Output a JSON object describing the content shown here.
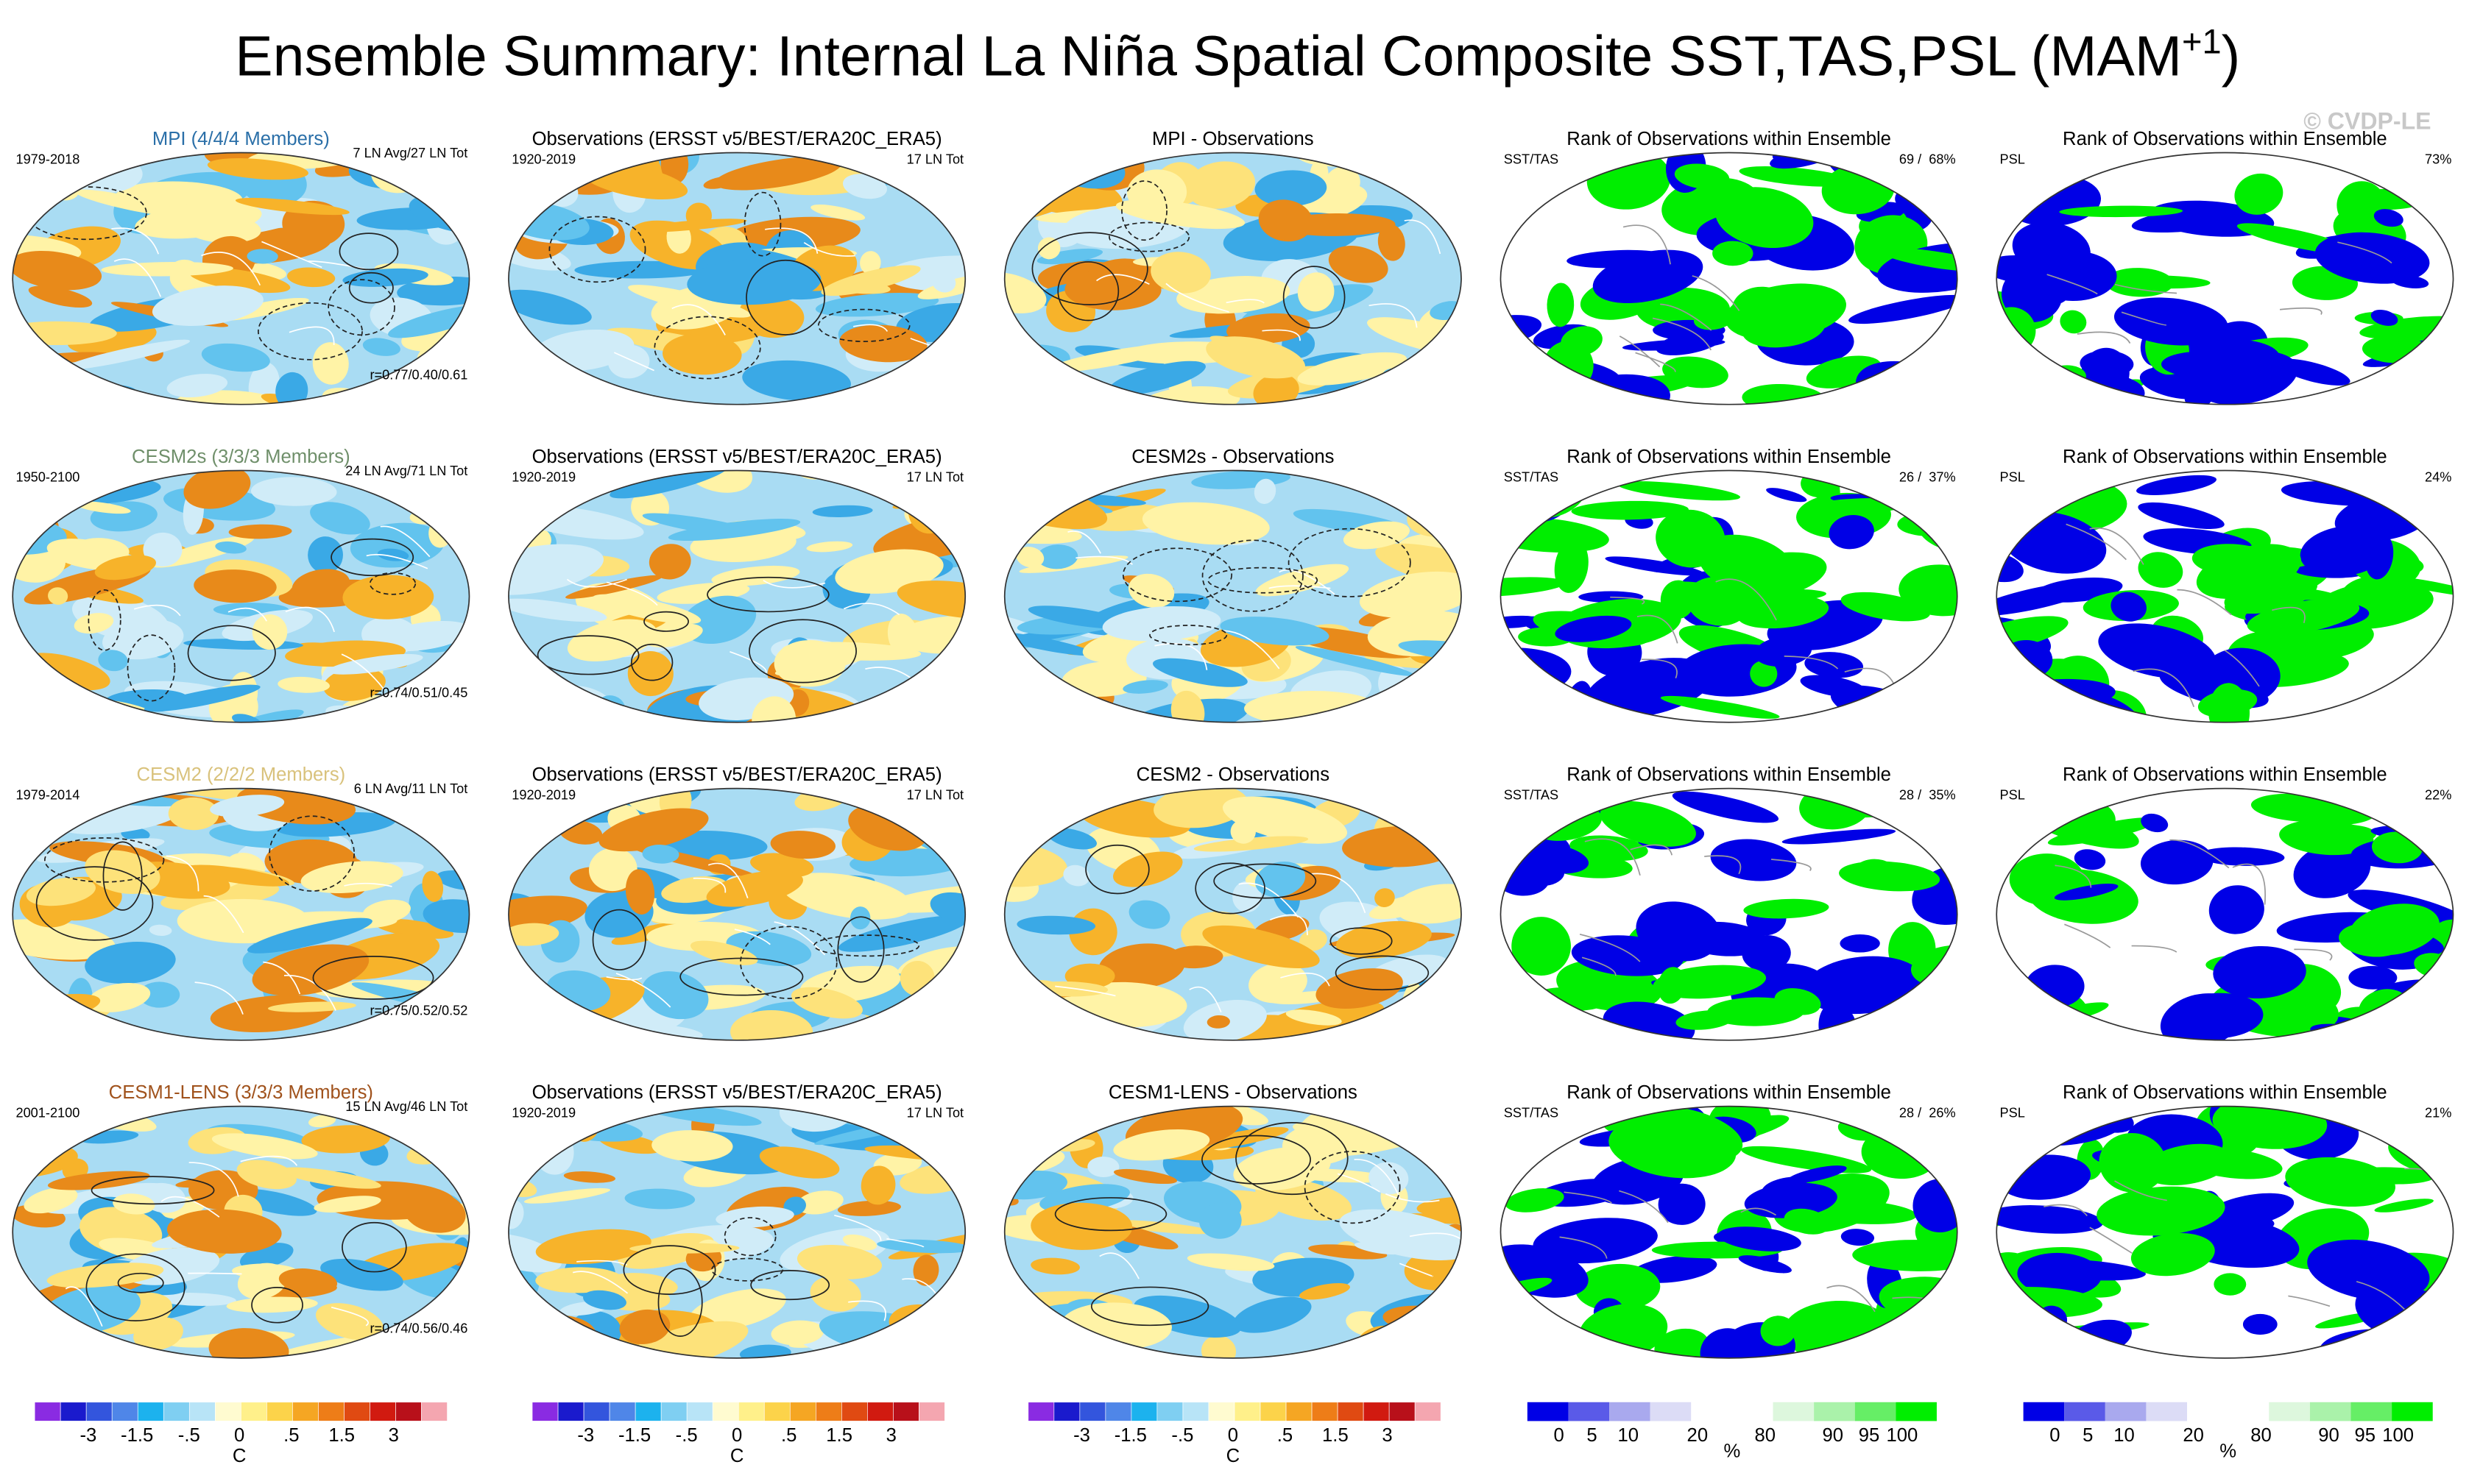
{
  "title": {
    "main": "Ensemble Summary: Internal La Niña Spatial Composite SST,TAS,PSL (MAM",
    "sup": "+1",
    "end": ")"
  },
  "watermark": "© CVDP-LE",
  "rows": [
    {
      "model": {
        "label": "MPI (4/4/4 Members)",
        "color": "#2a6fa8",
        "period": "1979-2018",
        "count": "7 LN Avg/27 LN Tot",
        "corr": "r=0.77/0.40/0.61"
      },
      "obs": {
        "label": "Observations (ERSST v5/BEST/ERA20C_ERA5)",
        "period": "1920-2019",
        "count": "17 LN Tot"
      },
      "diff": {
        "label": "MPI - Observations"
      },
      "rank_sst": {
        "label": "Rank of Observations within Ensemble",
        "var": "SST/TAS",
        "stat": "69 /  68%"
      },
      "rank_psl": {
        "label": "Rank of Observations within Ensemble",
        "var": "PSL",
        "stat": "73%"
      }
    },
    {
      "model": {
        "label": "CESM2s (3/3/3 Members)",
        "color": "#6f8f6a",
        "period": "1950-2100",
        "count": "24 LN Avg/71 LN Tot",
        "corr": "r=0.74/0.51/0.45"
      },
      "obs": {
        "label": "Observations (ERSST v5/BEST/ERA20C_ERA5)",
        "period": "1920-2019",
        "count": "17 LN Tot"
      },
      "diff": {
        "label": "CESM2s - Observations"
      },
      "rank_sst": {
        "label": "Rank of Observations within Ensemble",
        "var": "SST/TAS",
        "stat": "26 /  37%"
      },
      "rank_psl": {
        "label": "Rank of Observations within Ensemble",
        "var": "PSL",
        "stat": "24%"
      }
    },
    {
      "model": {
        "label": "CESM2 (2/2/2 Members)",
        "color": "#d9c27c",
        "period": "1979-2014",
        "count": "6 LN Avg/11 LN Tot",
        "corr": "r=0.75/0.52/0.52"
      },
      "obs": {
        "label": "Observations (ERSST v5/BEST/ERA20C_ERA5)",
        "period": "1920-2019",
        "count": "17 LN Tot"
      },
      "diff": {
        "label": "CESM2 - Observations"
      },
      "rank_sst": {
        "label": "Rank of Observations within Ensemble",
        "var": "SST/TAS",
        "stat": "28 /  35%"
      },
      "rank_psl": {
        "label": "Rank of Observations within Ensemble",
        "var": "PSL",
        "stat": "22%"
      }
    },
    {
      "model": {
        "label": "CESM1-LENS (3/3/3 Members)",
        "color": "#a0521c",
        "period": "2001-2100",
        "count": "15 LN Avg/46 LN Tot",
        "corr": "r=0.74/0.56/0.46"
      },
      "obs": {
        "label": "Observations (ERSST v5/BEST/ERA20C_ERA5)",
        "period": "1920-2019",
        "count": "17 LN Tot"
      },
      "diff": {
        "label": "CESM1-LENS - Observations"
      },
      "rank_sst": {
        "label": "Rank of Observations within Ensemble",
        "var": "SST/TAS",
        "stat": "28 /  26%"
      },
      "rank_psl": {
        "label": "Rank of Observations within Ensemble",
        "var": "PSL",
        "stat": "21%"
      }
    }
  ],
  "colorbars": {
    "temp": {
      "ticks": [
        "-3",
        "-1.5",
        "-.5",
        "0",
        ".5",
        "1.5",
        "3"
      ],
      "unit": "C"
    },
    "rank": {
      "ticks": [
        "0",
        "5",
        "10",
        "20",
        "80",
        "90",
        "95",
        "100"
      ],
      "unit": "%"
    }
  }
}
